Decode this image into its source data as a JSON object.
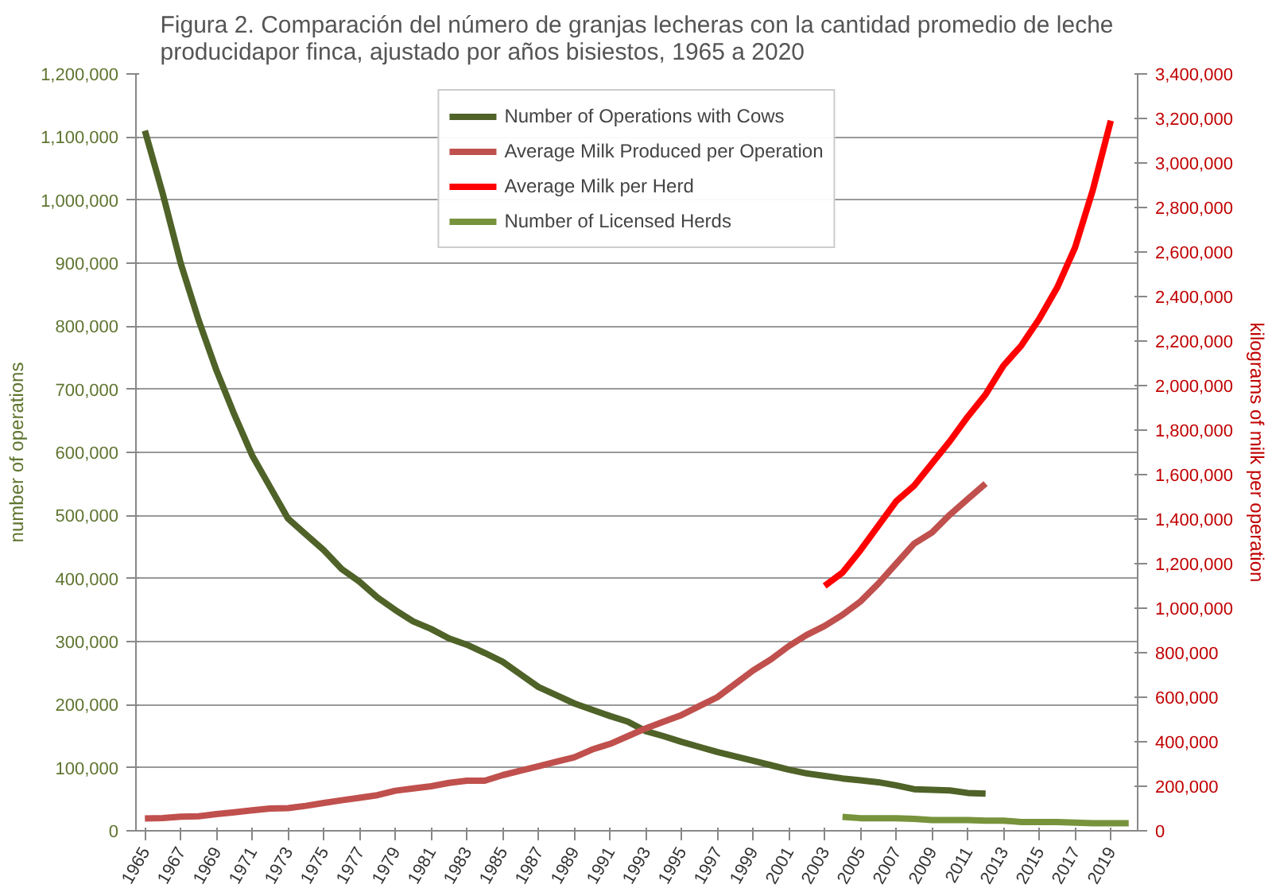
{
  "chart_data": {
    "type": "line",
    "title": "Figura 2. Comparación del número de granjas lecheras con la cantidad promedio de leche\nproducidapor finca, ajustado por años bisiestos, 1965 a 2020",
    "ylabel": "number of operations",
    "y2label": "kilograms of milk per operation",
    "xlim": [
      1964.5,
      2020.5
    ],
    "xticks": [
      1965,
      1967,
      1969,
      1971,
      1973,
      1975,
      1977,
      1979,
      1981,
      1983,
      1985,
      1987,
      1989,
      1991,
      1993,
      1995,
      1997,
      1999,
      2001,
      2003,
      2005,
      2007,
      2009,
      2011,
      2013,
      2015,
      2017,
      2019
    ],
    "ylim": [
      0,
      1200000
    ],
    "yticks": [
      {
        "value": 0,
        "label": "0"
      },
      {
        "value": 100000,
        "label": "100,000"
      },
      {
        "value": 200000,
        "label": "200,000"
      },
      {
        "value": 300000,
        "label": "300,000"
      },
      {
        "value": 400000,
        "label": "400,000"
      },
      {
        "value": 500000,
        "label": "500,000"
      },
      {
        "value": 600000,
        "label": "600,000"
      },
      {
        "value": 700000,
        "label": "700,000"
      },
      {
        "value": 800000,
        "label": "800,000"
      },
      {
        "value": 900000,
        "label": "900,000"
      },
      {
        "value": 1000000,
        "label": "1,000,000"
      },
      {
        "value": 1100000,
        "label": "1,100,000"
      },
      {
        "value": 1200000,
        "label": "1,200,000"
      }
    ],
    "y2lim": [
      0,
      3400000
    ],
    "y2ticks": [
      {
        "value": 0,
        "label": "0"
      },
      {
        "value": 200000,
        "label": "200,000"
      },
      {
        "value": 400000,
        "label": "400,000"
      },
      {
        "value": 600000,
        "label": "600,000"
      },
      {
        "value": 800000,
        "label": "800,000"
      },
      {
        "value": 1000000,
        "label": "1,000,000"
      },
      {
        "value": 1200000,
        "label": "1,200,000"
      },
      {
        "value": 1400000,
        "label": "1,400,000"
      },
      {
        "value": 1600000,
        "label": "1,600,000"
      },
      {
        "value": 1800000,
        "label": "1,800,000"
      },
      {
        "value": 2000000,
        "label": "2,000,000"
      },
      {
        "value": 2200000,
        "label": "2,200,000"
      },
      {
        "value": 2400000,
        "label": "2,400,000"
      },
      {
        "value": 2600000,
        "label": "2,600,000"
      },
      {
        "value": 2800000,
        "label": "2,800,000"
      },
      {
        "value": 3000000,
        "label": "3,000,000"
      },
      {
        "value": 3200000,
        "label": "3,200,000"
      },
      {
        "value": 3400000,
        "label": "3,400,000"
      }
    ],
    "grid": "y",
    "legend": "top",
    "marker": "none",
    "line_style": "solid",
    "series": [
      {
        "name": "Number of Operations with Cows",
        "color": "#4f6228",
        "x": [
          1965,
          1966,
          1967,
          1968,
          1969,
          1970,
          1971,
          1972,
          1973,
          1974,
          1975,
          1976,
          1977,
          1978,
          1979,
          1980,
          1981,
          1982,
          1983,
          1984,
          1985,
          1986,
          1987,
          1988,
          1989,
          1990,
          1991,
          1992,
          1993,
          1994,
          1995,
          1996,
          1997,
          1998,
          1999,
          2000,
          2001,
          2002,
          2003,
          2004,
          2005,
          2006,
          2007,
          2008,
          2009,
          2010,
          2011,
          2012
        ],
        "values": [
          1110000,
          1010000,
          900000,
          810000,
          730000,
          660000,
          595000,
          545000,
          495000,
          470000,
          445000,
          415000,
          395000,
          370000,
          350000,
          332000,
          320000,
          305000,
          295000,
          282000,
          268000,
          248000,
          228000,
          215000,
          202000,
          192000,
          182000,
          173000,
          158000,
          150000,
          141000,
          133000,
          125000,
          118000,
          111000,
          104000,
          97000,
          91000,
          87000,
          83000,
          80000,
          77000,
          72000,
          66000,
          65000,
          64000,
          60000,
          59000
        ]
      },
      {
        "name": "Average Milk Produced per Operation",
        "color": "#c0504d",
        "axis": "y2",
        "x": [
          1965,
          1966,
          1967,
          1968,
          1969,
          1970,
          1971,
          1972,
          1973,
          1974,
          1975,
          1976,
          1977,
          1978,
          1979,
          1980,
          1981,
          1982,
          1983,
          1984,
          1985,
          1986,
          1987,
          1988,
          1989,
          1990,
          1991,
          1992,
          1993,
          1994,
          1995,
          1996,
          1997,
          1998,
          1999,
          2000,
          2001,
          2002,
          2003,
          2004,
          2005,
          2006,
          2007,
          2008,
          2009,
          2010,
          2011,
          2012
        ],
        "values": [
          55000,
          57000,
          63000,
          65000,
          75000,
          83000,
          92000,
          100000,
          102000,
          112000,
          125000,
          137000,
          148000,
          160000,
          180000,
          190000,
          200000,
          215000,
          225000,
          225000,
          250000,
          270000,
          290000,
          310000,
          330000,
          365000,
          390000,
          425000,
          460000,
          490000,
          520000,
          560000,
          600000,
          660000,
          720000,
          770000,
          830000,
          880000,
          920000,
          970000,
          1030000,
          1110000,
          1200000,
          1290000,
          1340000,
          1420000,
          1490000,
          1560000
        ]
      },
      {
        "name": "Average Milk per Herd",
        "color": "#ff0000",
        "axis": "y2",
        "x": [
          2003,
          2004,
          2005,
          2006,
          2007,
          2008,
          2009,
          2010,
          2011,
          2012,
          2013,
          2014,
          2015,
          2016,
          2017,
          2018,
          2019
        ],
        "values": [
          1100000,
          1160000,
          1260000,
          1370000,
          1480000,
          1550000,
          1650000,
          1750000,
          1860000,
          1960000,
          2090000,
          2180000,
          2300000,
          2440000,
          2620000,
          2880000,
          3190000
        ]
      },
      {
        "name": "Number of Licensed Herds",
        "color": "#77933c",
        "x": [
          2004,
          2005,
          2006,
          2007,
          2008,
          2009,
          2010,
          2011,
          2012,
          2013,
          2014,
          2015,
          2016,
          2017,
          2018,
          2019,
          2020
        ],
        "values": [
          22000,
          20000,
          20000,
          20000,
          19000,
          17000,
          17000,
          17000,
          16000,
          16000,
          14000,
          14000,
          14000,
          13000,
          12000,
          12000,
          12000
        ]
      }
    ]
  }
}
